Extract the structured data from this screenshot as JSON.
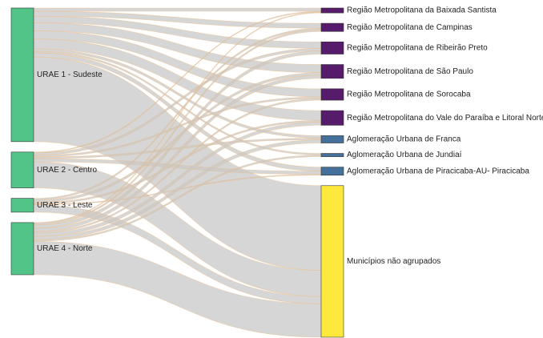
{
  "chart_data": {
    "type": "sankey",
    "link_color": "#c8c8c8",
    "nodes": [
      {
        "name": "URAE 1 - Sudeste",
        "color": "#52c488"
      },
      {
        "name": "URAE 2 - Centro",
        "color": "#52c488"
      },
      {
        "name": "URAE 3 - Leste",
        "color": "#52c488"
      },
      {
        "name": "URAE 4 - Norte",
        "color": "#52c488"
      },
      {
        "name": "Região Metropolitana da Baixada Santista",
        "color": "#561b6b"
      },
      {
        "name": "Região Metropolitana de Campinas",
        "color": "#561b6b"
      },
      {
        "name": "Região Metropolitana de Ribeirão Preto",
        "color": "#561b6b"
      },
      {
        "name": "Região Metropolitana de São Paulo",
        "color": "#561b6b"
      },
      {
        "name": "Região Metropolitana de Sorocaba",
        "color": "#561b6b"
      },
      {
        "name": "Região Metropolitana do Vale do Paraíba e Litoral Norte",
        "color": "#561b6b"
      },
      {
        "name": "Aglomeração Urbana de Franca",
        "color": "#45709a"
      },
      {
        "name": "Aglomeração Urbana de Jundiaí",
        "color": "#45709a"
      },
      {
        "name": "Aglomeração Urbana de Piracicaba-AU- Piracicaba",
        "color": "#45709a"
      },
      {
        "name": "Municípios não agrupados",
        "color": "#fde93b"
      }
    ],
    "links": [
      {
        "source": 0,
        "target": 4,
        "value": 4
      },
      {
        "source": 0,
        "target": 5,
        "value": 6
      },
      {
        "source": 0,
        "target": 6,
        "value": 8
      },
      {
        "source": 0,
        "target": 7,
        "value": 10
      },
      {
        "source": 0,
        "target": 8,
        "value": 10
      },
      {
        "source": 0,
        "target": 9,
        "value": 12
      },
      {
        "source": 0,
        "target": 10,
        "value": 3
      },
      {
        "source": 0,
        "target": 11,
        "value": 2
      },
      {
        "source": 0,
        "target": 12,
        "value": 5
      },
      {
        "source": 0,
        "target": 13,
        "value": 104
      },
      {
        "source": 1,
        "target": 4,
        "value": 1
      },
      {
        "source": 1,
        "target": 6,
        "value": 3
      },
      {
        "source": 1,
        "target": 8,
        "value": 2
      },
      {
        "source": 1,
        "target": 10,
        "value": 2
      },
      {
        "source": 1,
        "target": 12,
        "value": 4
      },
      {
        "source": 1,
        "target": 13,
        "value": 32
      },
      {
        "source": 2,
        "target": 5,
        "value": 2
      },
      {
        "source": 2,
        "target": 7,
        "value": 3
      },
      {
        "source": 2,
        "target": 9,
        "value": 2
      },
      {
        "source": 2,
        "target": 12,
        "value": 1
      },
      {
        "source": 2,
        "target": 13,
        "value": 9
      },
      {
        "source": 3,
        "target": 4,
        "value": 1
      },
      {
        "source": 3,
        "target": 5,
        "value": 2
      },
      {
        "source": 3,
        "target": 6,
        "value": 4
      },
      {
        "source": 3,
        "target": 7,
        "value": 4
      },
      {
        "source": 3,
        "target": 8,
        "value": 2
      },
      {
        "source": 3,
        "target": 9,
        "value": 4
      },
      {
        "source": 3,
        "target": 10,
        "value": 4
      },
      {
        "source": 3,
        "target": 11,
        "value": 2
      },
      {
        "source": 3,
        "target": 13,
        "value": 41
      }
    ]
  }
}
